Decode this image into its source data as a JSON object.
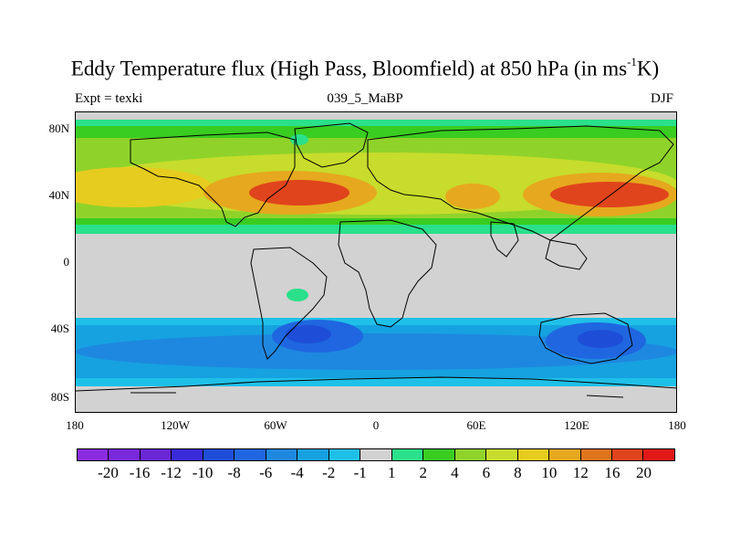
{
  "title": {
    "main_before": "Eddy Temperature flux (High Pass, Bloomfield) at 850 hPa (in ms",
    "superscript": "-1",
    "main_after": "K)"
  },
  "subtitle": {
    "left": "Expt = texki",
    "center": "039_5_MaBP",
    "right": "DJF"
  },
  "axes": {
    "y_ticks": [
      "80N",
      "40N",
      "0",
      "40S",
      "80S"
    ],
    "x_ticks": [
      "180",
      "120W",
      "60W",
      "0",
      "60E",
      "120E",
      "180"
    ]
  },
  "colorbar": {
    "labels": [
      "-20",
      "-16",
      "-12",
      "-10",
      "-8",
      "-6",
      "-4",
      "-2",
      "-1",
      "1",
      "2",
      "4",
      "6",
      "8",
      "10",
      "12",
      "16",
      "20"
    ],
    "colors": [
      "#8a2be2",
      "#7a28dc",
      "#6a27d6",
      "#3a2bd8",
      "#1e4ed8",
      "#1f66e0",
      "#1e88e0",
      "#16a2e0",
      "#1fc0e8",
      "#d2d2d2",
      "#2ae08a",
      "#39cc21",
      "#8fd32a",
      "#c7dc2c",
      "#e6cc1e",
      "#e6a81e",
      "#e0741c",
      "#e0441c",
      "#e01818"
    ]
  },
  "chart_data": {
    "type": "heatmap",
    "title": "Eddy Temperature flux (High Pass, Bloomfield) at 850 hPa (in ms-1K)",
    "experiment": "Expt = texki",
    "period": "039_5_MaBP",
    "season": "DJF",
    "units": "ms-1K",
    "x_range": [
      -180,
      180
    ],
    "y_range": [
      -90,
      90
    ],
    "contour_levels": [
      -20,
      -16,
      -12,
      -10,
      -8,
      -6,
      -4,
      -2,
      -1,
      1,
      2,
      4,
      6,
      8,
      10,
      12,
      16,
      20
    ]
  }
}
